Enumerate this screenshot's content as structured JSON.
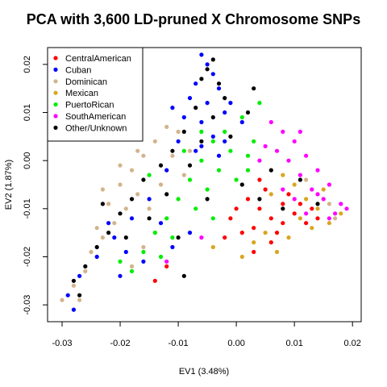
{
  "chart_data": {
    "type": "scatter",
    "title": "PCA with 3,600 LD-pruned X Chromosome SNPs",
    "xlabel": "EV1 (3.48%)",
    "ylabel": "EV2 (1.87%)",
    "xlim": [
      -0.0325,
      0.0215
    ],
    "ylim": [
      -0.0335,
      0.0235
    ],
    "xticks": [
      -0.03,
      -0.02,
      -0.01,
      0.0,
      0.01,
      0.02
    ],
    "xtick_labels": [
      "-0.03",
      "-0.02",
      "-0.01",
      "0.00",
      "0.01",
      "0.02"
    ],
    "yticks": [
      -0.03,
      -0.02,
      -0.01,
      0.0,
      0.01,
      0.02
    ],
    "ytick_labels": [
      "-0.03",
      "-0.02",
      "-0.01",
      "0.00",
      "0.01",
      "0.02"
    ],
    "grid": false,
    "legend_position": "top-left",
    "series": [
      {
        "name": "CentralAmerican",
        "color": "#ff0000",
        "points": [
          [
            0.004,
            -0.01
          ],
          [
            0.006,
            -0.012
          ],
          [
            0.008,
            -0.009
          ],
          [
            0.01,
            -0.011
          ],
          [
            0.003,
            -0.014
          ],
          [
            0.007,
            -0.015
          ],
          [
            0.012,
            -0.013
          ],
          [
            0.002,
            -0.008
          ],
          [
            0.005,
            -0.006
          ],
          [
            0.009,
            -0.007
          ],
          [
            -0.001,
            -0.012
          ],
          [
            0.001,
            -0.015
          ],
          [
            0.011,
            -0.009
          ],
          [
            0.014,
            -0.012
          ],
          [
            0.006,
            -0.017
          ],
          [
            0.0,
            -0.01
          ],
          [
            0.013,
            -0.01
          ],
          [
            0.008,
            -0.013
          ],
          [
            -0.002,
            -0.016
          ],
          [
            0.004,
            -0.004
          ],
          [
            -0.014,
            -0.025
          ],
          [
            -0.012,
            -0.022
          ],
          [
            0.003,
            -0.019
          ]
        ]
      },
      {
        "name": "Cuban",
        "color": "#0000ff",
        "points": [
          [
            -0.006,
            0.022
          ],
          [
            -0.005,
            0.02
          ],
          [
            -0.004,
            0.018
          ],
          [
            -0.007,
            0.016
          ],
          [
            -0.003,
            0.015
          ],
          [
            -0.008,
            0.013
          ],
          [
            -0.005,
            0.012
          ],
          [
            -0.002,
            0.01
          ],
          [
            -0.009,
            0.009
          ],
          [
            -0.006,
            0.008
          ],
          [
            -0.001,
            0.012
          ],
          [
            -0.004,
            0.005
          ],
          [
            -0.01,
            0.004
          ],
          [
            -0.007,
            0.002
          ],
          [
            -0.003,
            0.001
          ],
          [
            -0.012,
            -0.002
          ],
          [
            -0.015,
            -0.008
          ],
          [
            -0.018,
            -0.012
          ],
          [
            -0.021,
            -0.016
          ],
          [
            -0.024,
            -0.02
          ],
          [
            -0.027,
            -0.024
          ],
          [
            -0.029,
            -0.028
          ],
          [
            -0.028,
            -0.031
          ],
          [
            -0.022,
            -0.013
          ],
          [
            -0.019,
            -0.019
          ],
          [
            -0.016,
            -0.021
          ],
          [
            -0.011,
            -0.018
          ],
          [
            -0.008,
            -0.015
          ],
          [
            -0.013,
            -0.013
          ],
          [
            -0.02,
            -0.024
          ],
          [
            0.001,
            0.008
          ],
          [
            -0.002,
            0.004
          ],
          [
            -0.011,
            0.011
          ],
          [
            -0.006,
            0.003
          ]
        ]
      },
      {
        "name": "Dominican",
        "color": "#d2b48c",
        "points": [
          [
            -0.012,
            0.007
          ],
          [
            -0.014,
            0.004
          ],
          [
            -0.016,
            0.001
          ],
          [
            -0.018,
            -0.002
          ],
          [
            -0.02,
            -0.005
          ],
          [
            -0.017,
            -0.007
          ],
          [
            -0.019,
            -0.01
          ],
          [
            -0.021,
            -0.013
          ],
          [
            -0.023,
            -0.016
          ],
          [
            -0.025,
            -0.019
          ],
          [
            -0.026,
            -0.023
          ],
          [
            -0.028,
            -0.026
          ],
          [
            -0.027,
            -0.029
          ],
          [
            -0.015,
            -0.01
          ],
          [
            -0.013,
            -0.005
          ],
          [
            -0.011,
            0.001
          ],
          [
            -0.01,
            0.006
          ],
          [
            -0.009,
            -0.003
          ],
          [
            -0.022,
            -0.009
          ],
          [
            -0.024,
            -0.014
          ],
          [
            -0.014,
            -0.015
          ],
          [
            -0.012,
            -0.012
          ],
          [
            -0.016,
            -0.018
          ],
          [
            -0.018,
            -0.022
          ],
          [
            -0.03,
            -0.029
          ],
          [
            -0.008,
            0.002
          ],
          [
            0.012,
            -0.004
          ],
          [
            0.016,
            -0.009
          ],
          [
            0.017,
            -0.012
          ],
          [
            -0.02,
            -0.001
          ],
          [
            -0.023,
            -0.006
          ],
          [
            -0.017,
            0.002
          ]
        ]
      },
      {
        "name": "Mexican",
        "color": "#daa520",
        "points": [
          [
            0.008,
            -0.003
          ],
          [
            0.01,
            -0.005
          ],
          [
            0.012,
            -0.008
          ],
          [
            0.014,
            -0.01
          ],
          [
            0.013,
            -0.014
          ],
          [
            0.009,
            -0.016
          ],
          [
            0.005,
            -0.015
          ],
          [
            0.011,
            -0.012
          ],
          [
            0.016,
            -0.013
          ],
          [
            0.006,
            -0.007
          ],
          [
            0.003,
            -0.017
          ],
          [
            0.015,
            -0.006
          ],
          [
            0.001,
            -0.02
          ],
          [
            0.007,
            -0.019
          ],
          [
            -0.004,
            -0.018
          ],
          [
            0.018,
            -0.011
          ]
        ]
      },
      {
        "name": "PuertoRican",
        "color": "#00ee00",
        "points": [
          [
            -0.002,
            0.006
          ],
          [
            -0.004,
            0.004
          ],
          [
            -0.001,
            0.002
          ],
          [
            -0.006,
            0.0
          ],
          [
            -0.003,
            -0.002
          ],
          [
            -0.008,
            -0.004
          ],
          [
            -0.005,
            -0.006
          ],
          [
            -0.01,
            -0.008
          ],
          [
            -0.007,
            -0.01
          ],
          [
            -0.012,
            -0.012
          ],
          [
            -0.014,
            -0.015
          ],
          [
            -0.016,
            -0.019
          ],
          [
            -0.018,
            -0.023
          ],
          [
            0.0,
            -0.004
          ],
          [
            0.002,
            0.001
          ],
          [
            -0.009,
            0.002
          ],
          [
            -0.011,
            -0.016
          ],
          [
            -0.013,
            -0.02
          ],
          [
            0.001,
            0.009
          ],
          [
            0.003,
            0.004
          ],
          [
            0.004,
            0.012
          ],
          [
            0.002,
            -0.002
          ],
          [
            -0.006,
            0.006
          ],
          [
            -0.004,
            -0.012
          ],
          [
            -0.015,
            -0.003
          ],
          [
            -0.02,
            -0.021
          ]
        ]
      },
      {
        "name": "SouthAmerican",
        "color": "#ff00ff",
        "points": [
          [
            0.008,
            0.006
          ],
          [
            0.01,
            0.004
          ],
          [
            0.012,
            0.001
          ],
          [
            0.014,
            -0.002
          ],
          [
            0.016,
            -0.005
          ],
          [
            0.018,
            -0.009
          ],
          [
            0.017,
            -0.011
          ],
          [
            0.015,
            -0.008
          ],
          [
            0.013,
            -0.006
          ],
          [
            0.011,
            -0.003
          ],
          [
            0.009,
            0.0
          ],
          [
            0.007,
            0.002
          ],
          [
            0.006,
            0.008
          ],
          [
            0.012,
            -0.011
          ],
          [
            0.016,
            -0.012
          ],
          [
            0.014,
            -0.007
          ],
          [
            0.01,
            -0.008
          ],
          [
            0.005,
            0.003
          ],
          [
            0.019,
            -0.01
          ],
          [
            0.011,
            0.006
          ],
          [
            0.008,
            -0.006
          ],
          [
            0.004,
            0.0
          ],
          [
            -0.006,
            -0.016
          ],
          [
            -0.012,
            -0.021
          ]
        ]
      },
      {
        "name": "Other/Unknown",
        "color": "#000000",
        "points": [
          [
            -0.005,
            0.019
          ],
          [
            -0.004,
            0.021
          ],
          [
            -0.006,
            0.017
          ],
          [
            -0.003,
            0.016
          ],
          [
            -0.002,
            0.013
          ],
          [
            -0.007,
            0.011
          ],
          [
            -0.004,
            0.009
          ],
          [
            -0.009,
            0.006
          ],
          [
            -0.006,
            0.004
          ],
          [
            -0.011,
            0.002
          ],
          [
            -0.013,
            -0.001
          ],
          [
            -0.016,
            -0.004
          ],
          [
            -0.018,
            -0.008
          ],
          [
            -0.02,
            -0.011
          ],
          [
            -0.022,
            -0.015
          ],
          [
            -0.024,
            -0.018
          ],
          [
            -0.026,
            -0.022
          ],
          [
            -0.028,
            -0.025
          ],
          [
            -0.027,
            -0.028
          ],
          [
            -0.015,
            -0.012
          ],
          [
            -0.012,
            -0.007
          ],
          [
            -0.008,
            -0.001
          ],
          [
            -0.001,
            0.005
          ],
          [
            0.002,
            0.01
          ],
          [
            0.003,
            0.015
          ],
          [
            0.001,
            -0.005
          ],
          [
            0.004,
            -0.008
          ],
          [
            0.008,
            -0.01
          ],
          [
            0.011,
            -0.004
          ],
          [
            0.014,
            -0.009
          ],
          [
            -0.01,
            -0.016
          ],
          [
            -0.009,
            -0.024
          ],
          [
            -0.019,
            -0.016
          ],
          [
            -0.023,
            -0.009
          ],
          [
            -0.005,
            -0.008
          ],
          [
            0.006,
            -0.002
          ]
        ]
      }
    ]
  }
}
